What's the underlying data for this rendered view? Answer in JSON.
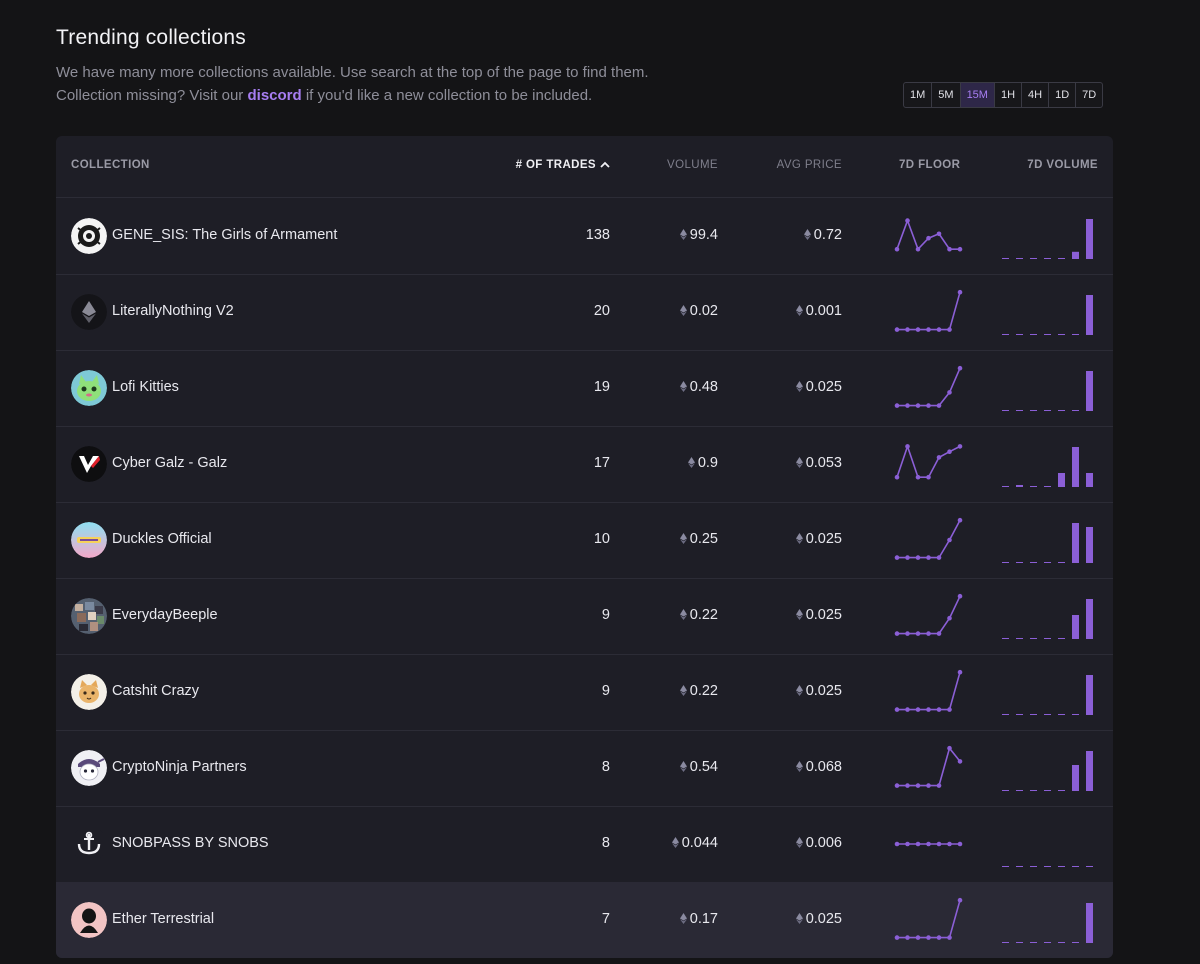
{
  "header": {
    "title": "Trending collections",
    "desc_line1": "We have many more collections available. Use search at the top of the page to find them.",
    "desc_line2_before": "Collection missing? Visit our ",
    "desc_link": "discord",
    "desc_line2_after": " if you'd like a new collection to be included."
  },
  "timeframes": [
    "1M",
    "5M",
    "15M",
    "1H",
    "4H",
    "1D",
    "7D"
  ],
  "active_timeframe": "15M",
  "columns": {
    "collection": "COLLECTION",
    "trades": "# OF TRADES",
    "volume": "VOLUME",
    "avg_price": "AVG PRICE",
    "floor": "7D FLOOR",
    "vol7d": "7D VOLUME"
  },
  "accent": "#8b5fd6",
  "rows": [
    {
      "name": "GENE_SIS: The Girls of Armament",
      "trades": "138",
      "volume": "99.4",
      "avg": "0.72",
      "avatar": "gene-sis-avatar",
      "floor": [
        0.2,
        0.85,
        0.2,
        0.45,
        0.55,
        0.2,
        0.2
      ],
      "vol": [
        0,
        0,
        0,
        0,
        0,
        0.18,
        1
      ]
    },
    {
      "name": "LiterallyNothing V2",
      "trades": "20",
      "volume": "0.02",
      "avg": "0.001",
      "avatar": "ethereum-avatar",
      "floor": [
        0.1,
        0.1,
        0.1,
        0.1,
        0.1,
        0.1,
        0.95
      ],
      "vol": [
        0,
        0,
        0,
        0,
        0,
        0,
        1
      ]
    },
    {
      "name": "Lofi Kitties",
      "trades": "19",
      "volume": "0.48",
      "avg": "0.025",
      "avatar": "lofi-kitty-avatar",
      "floor": [
        0.1,
        0.1,
        0.1,
        0.1,
        0.1,
        0.4,
        0.95
      ],
      "vol": [
        0,
        0,
        0,
        0,
        0,
        0,
        1
      ]
    },
    {
      "name": "Cyber Galz - Galz",
      "trades": "17",
      "volume": "0.9",
      "avg": "0.053",
      "avatar": "cyber-galz-avatar",
      "floor": [
        0.2,
        0.9,
        0.2,
        0.2,
        0.65,
        0.78,
        0.9
      ],
      "vol": [
        0,
        0.05,
        0,
        0,
        0.35,
        1,
        0.35
      ]
    },
    {
      "name": "Duckles Official",
      "trades": "10",
      "volume": "0.25",
      "avg": "0.025",
      "avatar": "duckles-avatar",
      "floor": [
        0.1,
        0.1,
        0.1,
        0.1,
        0.1,
        0.5,
        0.95
      ],
      "vol": [
        0,
        0,
        0,
        0,
        0,
        1,
        0.9
      ]
    },
    {
      "name": "EverydayBeeple",
      "trades": "9",
      "volume": "0.22",
      "avg": "0.025",
      "avatar": "everyday-beeple-avatar",
      "floor": [
        0.1,
        0.1,
        0.1,
        0.1,
        0.1,
        0.45,
        0.95
      ],
      "vol": [
        0,
        0,
        0,
        0,
        0,
        0.6,
        1
      ]
    },
    {
      "name": "Catshit Crazy",
      "trades": "9",
      "volume": "0.22",
      "avg": "0.025",
      "avatar": "catshit-avatar",
      "floor": [
        0.1,
        0.1,
        0.1,
        0.1,
        0.1,
        0.1,
        0.95
      ],
      "vol": [
        0,
        0,
        0,
        0,
        0,
        0,
        1
      ]
    },
    {
      "name": "CryptoNinja Partners",
      "trades": "8",
      "volume": "0.54",
      "avg": "0.068",
      "avatar": "crypto-ninja-avatar",
      "floor": [
        0.1,
        0.1,
        0.1,
        0.1,
        0.1,
        0.95,
        0.65
      ],
      "vol": [
        0,
        0,
        0,
        0,
        0,
        0.65,
        1
      ]
    },
    {
      "name": "SNOBPASS BY SNOBS",
      "trades": "8",
      "volume": "0.044",
      "avg": "0.006",
      "avatar": "snobpass-avatar",
      "floor": [
        0.5,
        0.5,
        0.5,
        0.5,
        0.5,
        0.5,
        0.5
      ],
      "vol": [
        0,
        0,
        0,
        0,
        0,
        0,
        0
      ]
    },
    {
      "name": "Ether Terrestrial",
      "trades": "7",
      "volume": "0.17",
      "avg": "0.025",
      "avatar": "ether-terrestrial-avatar",
      "floor": [
        0.1,
        0.1,
        0.1,
        0.1,
        0.1,
        0.1,
        0.95
      ],
      "vol": [
        0,
        0,
        0,
        0,
        0,
        0,
        1
      ]
    }
  ]
}
